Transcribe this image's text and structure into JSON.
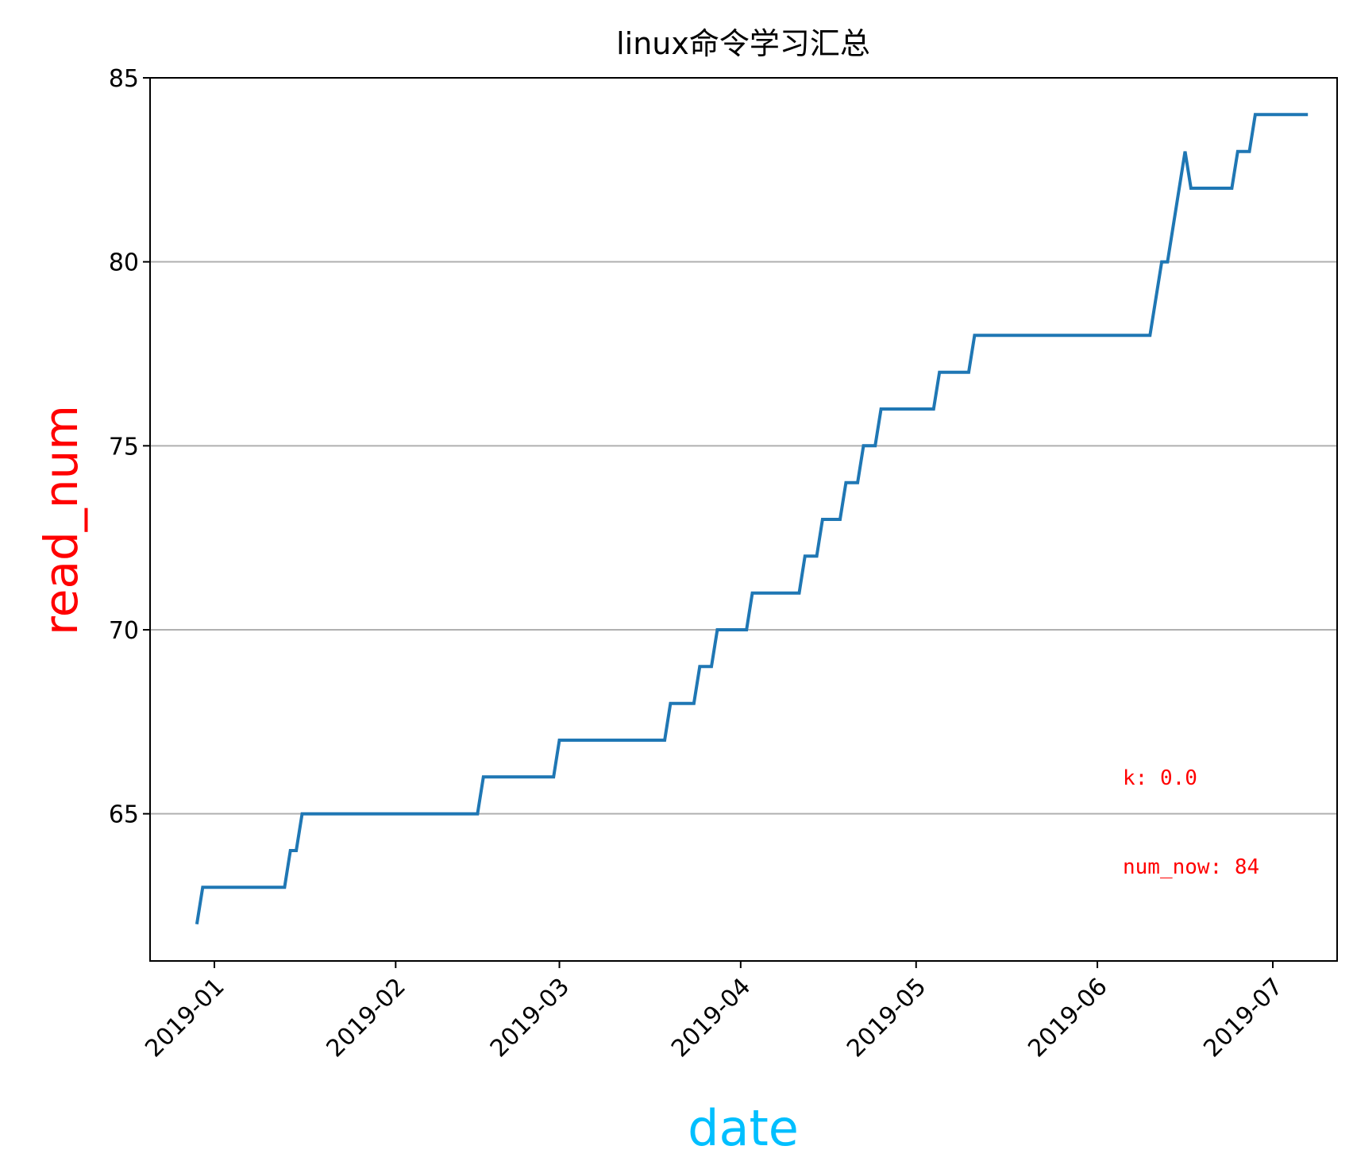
{
  "chart_data": {
    "type": "line",
    "title": "linux命令学习汇总",
    "xlabel": "date",
    "ylabel": "read_num",
    "xlabel_color": "#00bfff",
    "ylabel_color": "#ff0000",
    "line_color": "#1f77b4",
    "grid": "horizontal",
    "ylim": [
      61,
      85
    ],
    "yticks": [
      "65",
      "70",
      "75",
      "80",
      "85"
    ],
    "xlim": [
      "2018-12-21",
      "2019-07-12"
    ],
    "xticks": [
      "2019-01",
      "2019-02",
      "2019-03",
      "2019-04",
      "2019-05",
      "2019-06",
      "2019-07"
    ],
    "annotations": [
      {
        "text": "k: 0.0",
        "color": "#ff0000"
      },
      {
        "text": "num_now: 84",
        "color": "#ff0000"
      }
    ],
    "series": [
      {
        "points": [
          [
            "2018-12-29",
            62
          ],
          [
            "2018-12-30",
            63
          ],
          [
            "2019-01-13",
            63
          ],
          [
            "2019-01-14",
            64
          ],
          [
            "2019-01-15",
            64
          ],
          [
            "2019-01-16",
            65
          ],
          [
            "2019-02-15",
            65
          ],
          [
            "2019-02-16",
            66
          ],
          [
            "2019-02-28",
            66
          ],
          [
            "2019-03-01",
            67
          ],
          [
            "2019-03-19",
            67
          ],
          [
            "2019-03-20",
            68
          ],
          [
            "2019-03-24",
            68
          ],
          [
            "2019-03-25",
            69
          ],
          [
            "2019-03-27",
            69
          ],
          [
            "2019-03-28",
            70
          ],
          [
            "2019-04-02",
            70
          ],
          [
            "2019-04-03",
            71
          ],
          [
            "2019-04-11",
            71
          ],
          [
            "2019-04-12",
            72
          ],
          [
            "2019-04-14",
            72
          ],
          [
            "2019-04-15",
            73
          ],
          [
            "2019-04-18",
            73
          ],
          [
            "2019-04-19",
            74
          ],
          [
            "2019-04-21",
            74
          ],
          [
            "2019-04-22",
            75
          ],
          [
            "2019-04-24",
            75
          ],
          [
            "2019-04-25",
            76
          ],
          [
            "2019-05-04",
            76
          ],
          [
            "2019-05-05",
            77
          ],
          [
            "2019-05-10",
            77
          ],
          [
            "2019-05-11",
            78
          ],
          [
            "2019-06-10",
            78
          ],
          [
            "2019-06-12",
            80
          ],
          [
            "2019-06-13",
            80
          ],
          [
            "2019-06-16",
            83
          ],
          [
            "2019-06-17",
            82
          ],
          [
            "2019-06-24",
            82
          ],
          [
            "2019-06-25",
            83
          ],
          [
            "2019-06-27",
            83
          ],
          [
            "2019-06-28",
            84
          ],
          [
            "2019-07-07",
            84
          ]
        ]
      }
    ]
  }
}
